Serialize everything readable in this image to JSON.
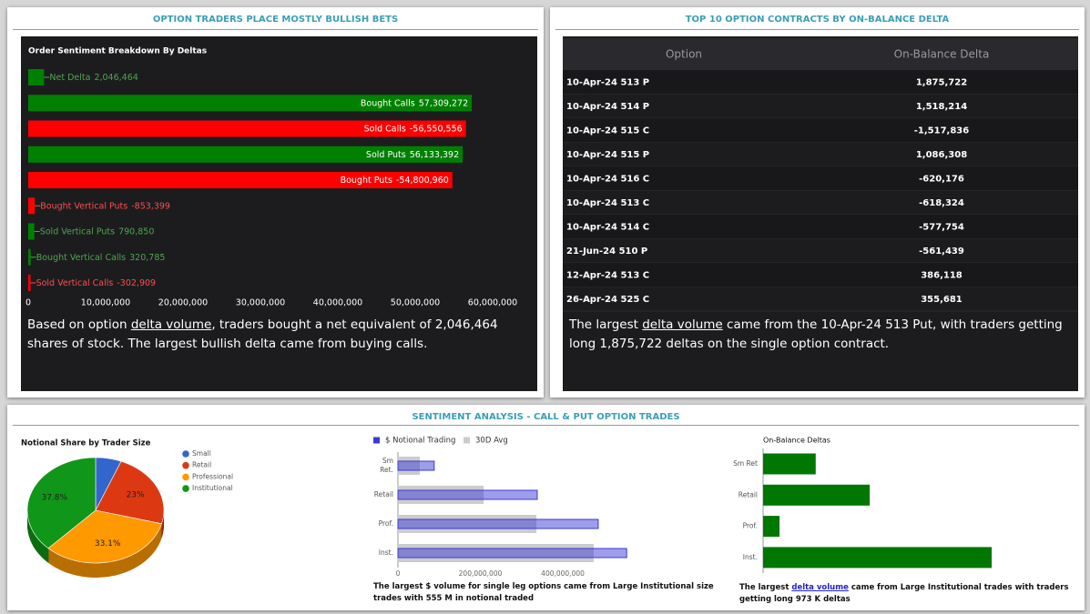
{
  "panels": [
    {
      "title": "OPTION TRADERS PLACE MOSTLY BULLISH BETS"
    },
    {
      "title": "TOP 10 OPTION CONTRACTS BY ON-BALANCE DELTA"
    },
    {
      "title": "SENTIMENT ANALYSIS - CALL & PUT OPTION TRADES"
    }
  ],
  "chart_data": [
    {
      "type": "bar",
      "orientation": "horizontal",
      "title": "Order Sentiment Breakdown By Deltas",
      "categories": [
        "Net Delta",
        "Bought Calls",
        "Sold Calls",
        "Sold Puts",
        "Bought Puts",
        "Bought Vertical Puts",
        "Sold Vertical Puts",
        "Bought Vertical Calls",
        "Sold Vertical Calls"
      ],
      "values": [
        2046464,
        57309272,
        -56550556,
        56133392,
        -54800960,
        -853399,
        790850,
        320785,
        -302909
      ],
      "value_labels": [
        "2,046,464",
        "57,309,272",
        "-56,550,556",
        "56,133,392",
        "-54,800,960",
        "-853,399",
        "790,850",
        "320,785",
        "-302,909"
      ],
      "colors": [
        "#008000",
        "#008000",
        "#ff0000",
        "#008000",
        "#ff0000",
        "#ff0000",
        "#008000",
        "#008000",
        "#ff0000"
      ],
      "xlim": [
        0,
        60000000
      ],
      "xticks": [
        0,
        {
          "value": 10000000,
          "label": "10,000,000"
        },
        {
          "value": 20000000,
          "label": "20,000,000"
        },
        {
          "value": 30000000,
          "label": "30,000,000"
        },
        {
          "value": 40000000,
          "label": "40,000,000"
        },
        {
          "value": 50000000,
          "label": "50,000,000"
        },
        {
          "value": 60000000,
          "label": "60,000,000"
        }
      ],
      "caption": [
        "Based on option ",
        "delta volume",
        ", traders bought a net equivalent of 2,046,464 shares of stock. The largest bullish delta came from buying calls."
      ]
    },
    {
      "type": "pie",
      "title": "Notional Share by Trader Size",
      "categories": [
        "Small",
        "Retail",
        "Professional",
        "Institutional"
      ],
      "values": [
        6.1,
        23,
        33.1,
        37.8
      ],
      "value_labels": [
        null,
        "23%",
        "33.1%",
        "37.8%"
      ],
      "colors": [
        "#3366cc",
        "#dc3912",
        "#ff9900",
        "#109618"
      ],
      "legend": "right"
    },
    {
      "type": "bar",
      "orientation": "horizontal",
      "categories": [
        "Sm Ret.",
        "Retail",
        "Prof.",
        "Inst."
      ],
      "series": [
        {
          "name": "$ Notional Trading",
          "color": "#3b3bd6",
          "values": [
            88000000,
            338000000,
            486000000,
            555000000
          ]
        },
        {
          "name": "30D Avg",
          "color": "#cccccc",
          "values": [
            53000000,
            208000000,
            336000000,
            475000000
          ]
        }
      ],
      "xlim": [
        0,
        580000000
      ],
      "xticks": [
        0,
        {
          "value": 200000000,
          "label": "200,000,000"
        },
        {
          "value": 400000000,
          "label": "400,000,000"
        }
      ],
      "legend": "top",
      "caption": [
        "The largest $ volume for single leg options came from Large Institutional size trades with 555 M in notional traded"
      ]
    },
    {
      "type": "bar",
      "orientation": "horizontal",
      "title": "On-Balance Deltas",
      "categories": [
        "Sm Ret",
        "Retail",
        "Prof.",
        "Inst."
      ],
      "values": [
        224000,
        454000,
        70000,
        973000
      ],
      "color": "#007700",
      "caption": [
        "The largest ",
        "delta volume",
        " came from Large Institutional trades with traders getting long 973 K deltas"
      ]
    }
  ],
  "table": {
    "columns": [
      "Option",
      "On-Balance Delta"
    ],
    "rows": [
      [
        "10-Apr-24 513 P",
        "1,875,722"
      ],
      [
        "10-Apr-24 514 P",
        "1,518,214"
      ],
      [
        "10-Apr-24 515 C",
        "-1,517,836"
      ],
      [
        "10-Apr-24 515 P",
        "1,086,308"
      ],
      [
        "10-Apr-24 516 C",
        "-620,176"
      ],
      [
        "10-Apr-24 513 C",
        "-618,324"
      ],
      [
        "10-Apr-24 514 C",
        "-577,754"
      ],
      [
        "21-Jun-24 510 P",
        "-561,439"
      ],
      [
        "12-Apr-24 513 C",
        "386,118"
      ],
      [
        "26-Apr-24 525 C",
        "355,681"
      ]
    ],
    "caption": [
      "The largest ",
      "delta volume",
      " came from the 10-Apr-24 513 Put, with traders getting long 1,875,722 deltas on the single option contract."
    ]
  }
}
